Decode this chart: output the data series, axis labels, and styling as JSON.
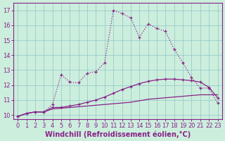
{
  "xlabel": "Windchill (Refroidissement éolien,°C)",
  "bg_color": "#cceedd",
  "line_color": "#882288",
  "xlim": [
    -0.5,
    23.5
  ],
  "ylim": [
    9.7,
    17.5
  ],
  "xticks": [
    0,
    1,
    2,
    3,
    4,
    5,
    6,
    7,
    8,
    9,
    10,
    11,
    12,
    13,
    14,
    15,
    16,
    17,
    18,
    19,
    20,
    21,
    22,
    23
  ],
  "yticks": [
    10,
    11,
    12,
    13,
    14,
    15,
    16,
    17
  ],
  "series1_x": [
    0,
    1,
    2,
    3,
    4,
    5,
    6,
    7,
    8,
    9,
    10,
    11,
    12,
    13,
    14,
    15,
    16,
    17,
    18,
    19,
    20,
    21,
    22,
    23
  ],
  "series1_y": [
    9.9,
    10.1,
    10.2,
    10.2,
    10.4,
    10.45,
    10.5,
    10.55,
    10.6,
    10.65,
    10.7,
    10.75,
    10.8,
    10.85,
    10.95,
    11.05,
    11.1,
    11.15,
    11.2,
    11.25,
    11.3,
    11.35,
    11.35,
    11.35
  ],
  "series2_x": [
    0,
    1,
    2,
    3,
    4,
    5,
    6,
    7,
    8,
    9,
    10,
    11,
    12,
    13,
    14,
    15,
    16,
    17,
    18,
    19,
    20,
    21,
    22,
    23
  ],
  "series2_y": [
    9.9,
    10.1,
    10.2,
    10.2,
    10.5,
    10.5,
    10.6,
    10.7,
    10.85,
    11.0,
    11.2,
    11.45,
    11.7,
    11.9,
    12.1,
    12.25,
    12.35,
    12.4,
    12.4,
    12.35,
    12.3,
    12.2,
    11.85,
    11.15
  ],
  "series3_x": [
    0,
    1,
    2,
    3,
    4,
    5,
    6,
    7,
    8,
    9,
    10,
    11,
    12,
    13,
    14,
    15,
    16,
    17,
    18,
    19,
    20,
    21,
    22,
    23
  ],
  "series3_y": [
    9.9,
    10.1,
    10.2,
    10.2,
    10.7,
    12.7,
    12.2,
    12.15,
    12.8,
    12.9,
    13.5,
    17.0,
    16.8,
    16.5,
    15.2,
    16.1,
    15.8,
    15.6,
    14.4,
    13.5,
    12.5,
    11.8,
    11.8,
    10.8
  ],
  "grid_color": "#99cccc",
  "tick_fontsize": 6,
  "xlabel_fontsize": 7
}
